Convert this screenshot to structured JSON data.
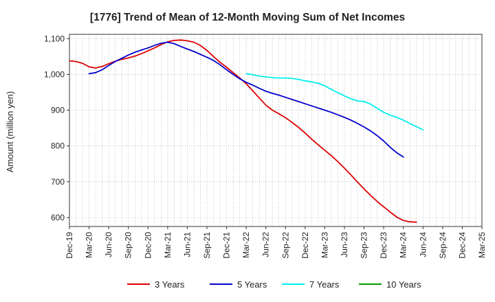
{
  "chart_data": {
    "type": "line",
    "title": "[1776]  Trend of Mean of 12-Month Moving Sum of Net Incomes",
    "xlabel": "",
    "ylabel": "Amount (million yen)",
    "ylim": [
      575,
      1112
    ],
    "yticks": [
      600,
      700,
      800,
      900,
      1000,
      1100
    ],
    "ytick_labels": [
      "600",
      "700",
      "800",
      "900",
      "1,000",
      "1,100"
    ],
    "x_categories": [
      "Dec-19",
      "Mar-20",
      "Jun-20",
      "Sep-20",
      "Dec-20",
      "Mar-21",
      "Jun-21",
      "Sep-21",
      "Dec-21",
      "Mar-22",
      "Jun-22",
      "Sep-22",
      "Dec-22",
      "Mar-23",
      "Jun-23",
      "Sep-23",
      "Dec-23",
      "Mar-24",
      "Jun-24",
      "Sep-24",
      "Dec-24",
      "Mar-25"
    ],
    "grid": true,
    "legend_position": "bottom",
    "series": [
      {
        "name": "3 Years",
        "color": "#dd0000",
        "start_index": 0,
        "values": [
          1038,
          1036,
          1031,
          1021,
          1018,
          1022,
          1030,
          1037,
          1042,
          1046,
          1051,
          1058,
          1066,
          1074,
          1083,
          1091,
          1095,
          1096,
          1094,
          1090,
          1081,
          1067,
          1050,
          1034,
          1020,
          1005,
          990,
          974,
          954,
          934,
          914,
          900,
          890,
          879,
          866,
          852,
          836,
          819,
          803,
          788,
          773,
          756,
          738,
          719,
          699,
          680,
          662,
          645,
          630,
          615,
          601,
          592,
          588,
          587
        ]
      },
      {
        "name": "5 Years",
        "color": "#0000cc",
        "start_index": 3,
        "values": [
          1002,
          1005,
          1013,
          1025,
          1036,
          1045,
          1054,
          1062,
          1068,
          1074,
          1081,
          1087,
          1090,
          1086,
          1078,
          1071,
          1064,
          1056,
          1048,
          1039,
          1027,
          1013,
          1000,
          988,
          978,
          970,
          961,
          953,
          947,
          942,
          936,
          930,
          924,
          918,
          912,
          906,
          900,
          894,
          887,
          880,
          872,
          863,
          853,
          842,
          829,
          814,
          796,
          781,
          769
        ]
      },
      {
        "name": "7 Years",
        "color": "#00eeee",
        "start_index": 27,
        "values": [
          1002,
          999,
          995,
          993,
          991,
          990,
          990,
          989,
          986,
          982,
          979,
          975,
          968,
          958,
          949,
          940,
          932,
          926,
          924,
          917,
          905,
          894,
          886,
          880,
          872,
          863,
          854,
          845
        ]
      },
      {
        "name": "10 Years",
        "color": "#009900",
        "start_index": 0,
        "values": []
      }
    ]
  }
}
